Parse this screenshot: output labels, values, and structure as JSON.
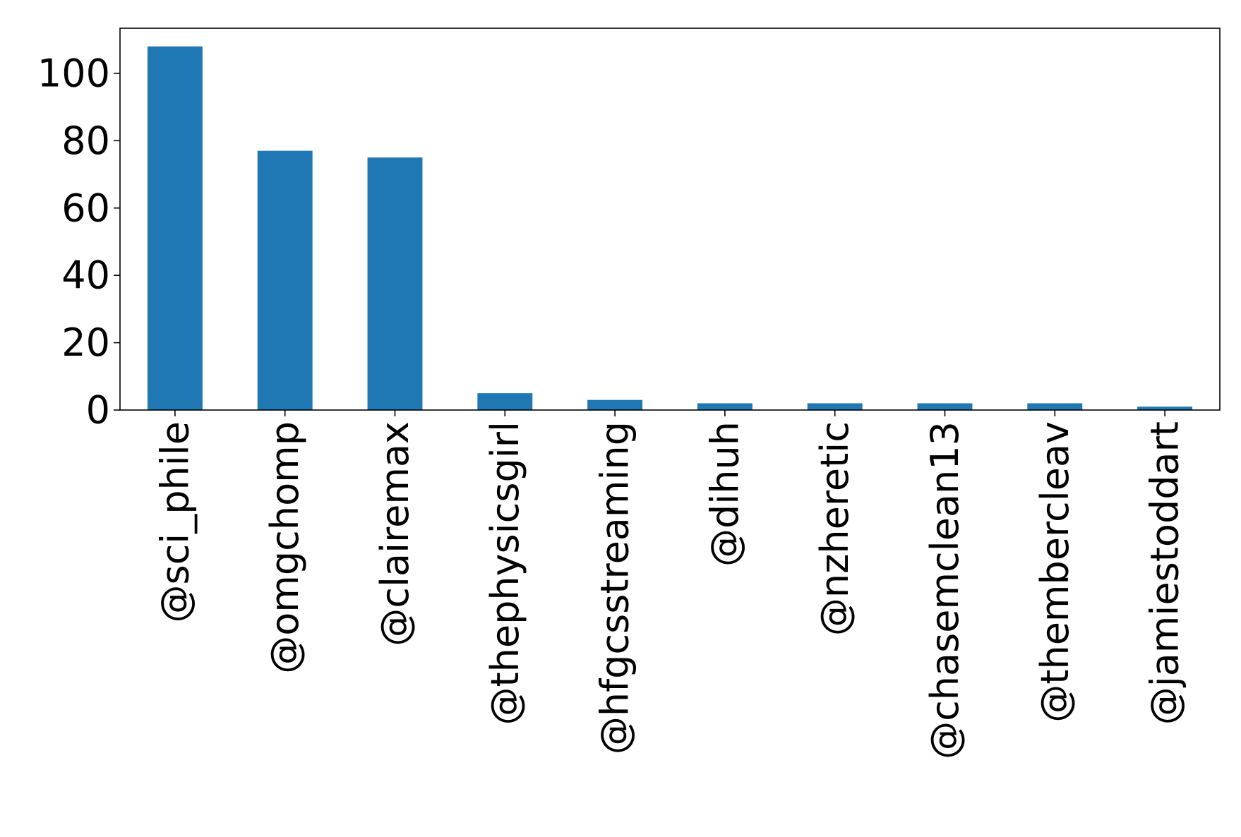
{
  "chart_data": {
    "type": "bar",
    "title": "",
    "xlabel": "",
    "ylabel": "",
    "categories": [
      "@sci_phile",
      "@omgchomp",
      "@clairemax",
      "@thephysicsgirl",
      "@hfgcsstreaming",
      "@dihuh",
      "@nzheretic",
      "@chasemclean13",
      "@thembercleav",
      "@jamiestoddart"
    ],
    "values": [
      108,
      77,
      75,
      5,
      3,
      2,
      2,
      2,
      2,
      1
    ],
    "ylim": [
      0,
      113.4
    ],
    "yticks": [
      0,
      20,
      40,
      60,
      80,
      100
    ],
    "grid": false,
    "legend": "none",
    "bar_color": "#1f77b4"
  }
}
